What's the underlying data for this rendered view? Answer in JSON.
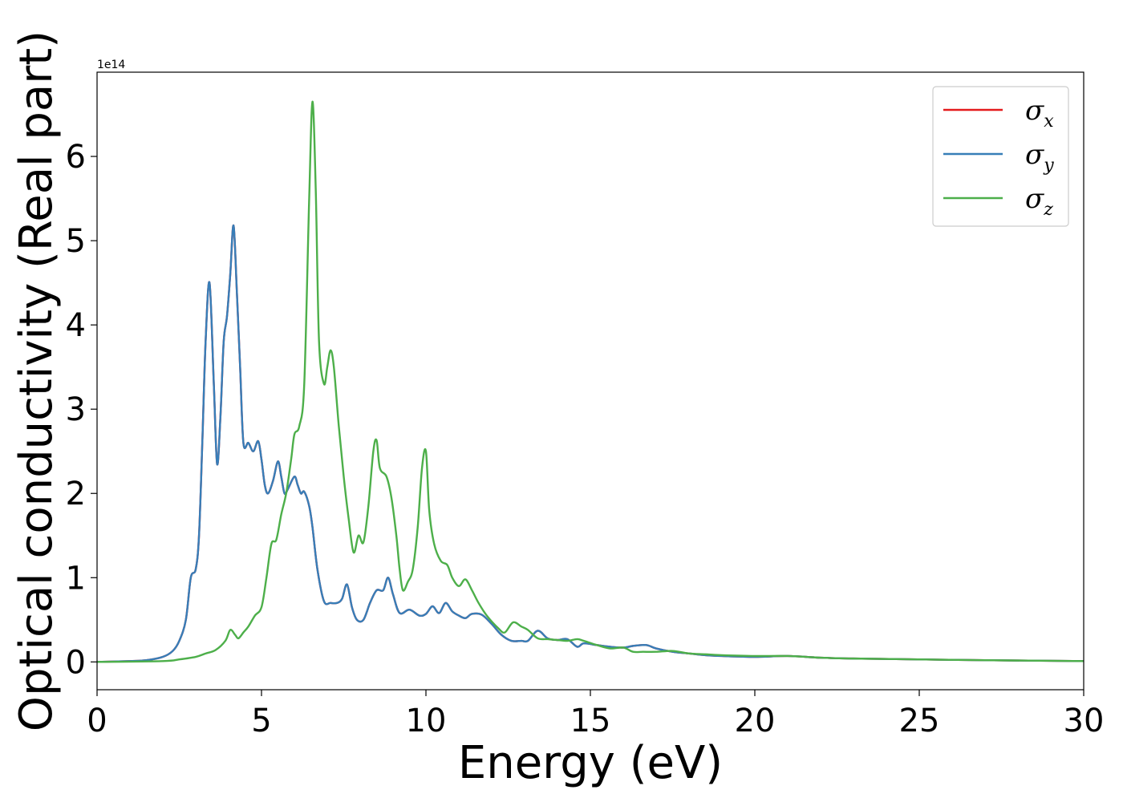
{
  "chart_data": {
    "type": "line",
    "title": "",
    "xlabel": "Energy (eV)",
    "ylabel": "Optical conductivity (Real part)",
    "y_offset_label": "1e14",
    "xlim": [
      0,
      30
    ],
    "ylim": [
      -0.33,
      7.0
    ],
    "xticks": [
      "0",
      "5",
      "10",
      "15",
      "20",
      "25",
      "30"
    ],
    "yticks": [
      "0",
      "1",
      "2",
      "3",
      "4",
      "5",
      "6"
    ],
    "grid": false,
    "legend_position": "upper right",
    "series": [
      {
        "name": "σ_x",
        "symbol": "σ",
        "sub": "x",
        "color": "#e41a1c",
        "x": [
          0,
          1,
          1.5,
          2,
          2.3,
          2.5,
          2.7,
          2.85,
          3.0,
          3.1,
          3.2,
          3.3,
          3.42,
          3.55,
          3.65,
          3.75,
          3.85,
          3.95,
          4.05,
          4.15,
          4.25,
          4.35,
          4.45,
          4.6,
          4.75,
          4.9,
          5.0,
          5.1,
          5.2,
          5.35,
          5.5,
          5.6,
          5.7,
          5.8,
          6.0,
          6.1,
          6.2,
          6.3,
          6.45,
          6.55,
          6.7,
          6.9,
          7.1,
          7.3,
          7.45,
          7.6,
          7.75,
          7.9,
          8.1,
          8.3,
          8.5,
          8.7,
          8.85,
          9.0,
          9.2,
          9.5,
          9.8,
          10.0,
          10.2,
          10.4,
          10.6,
          10.8,
          11.0,
          11.2,
          11.4,
          11.7,
          12.0,
          12.3,
          12.6,
          12.9,
          13.1,
          13.4,
          13.7,
          14.0,
          14.3,
          14.6,
          14.8,
          15.2,
          15.6,
          16.0,
          16.3,
          16.7,
          17.0,
          17.5,
          18.0,
          18.5,
          19.0,
          20.0,
          21.0,
          22.0,
          23.0,
          25.0,
          27.0,
          30.0
        ],
        "y": [
          0,
          0.01,
          0.02,
          0.06,
          0.13,
          0.25,
          0.5,
          1.0,
          1.1,
          1.5,
          2.6,
          3.8,
          4.5,
          3.3,
          2.35,
          2.9,
          3.8,
          4.1,
          4.6,
          5.18,
          4.4,
          3.5,
          2.6,
          2.6,
          2.5,
          2.62,
          2.4,
          2.1,
          2.0,
          2.15,
          2.38,
          2.2,
          2.0,
          2.05,
          2.2,
          2.1,
          2.0,
          2.02,
          1.85,
          1.6,
          1.1,
          0.72,
          0.7,
          0.7,
          0.75,
          0.92,
          0.65,
          0.5,
          0.5,
          0.7,
          0.85,
          0.85,
          1.0,
          0.8,
          0.58,
          0.62,
          0.55,
          0.57,
          0.66,
          0.58,
          0.7,
          0.6,
          0.55,
          0.52,
          0.57,
          0.56,
          0.45,
          0.32,
          0.25,
          0.25,
          0.25,
          0.37,
          0.28,
          0.26,
          0.27,
          0.18,
          0.22,
          0.2,
          0.18,
          0.17,
          0.19,
          0.2,
          0.16,
          0.12,
          0.1,
          0.08,
          0.07,
          0.06,
          0.07,
          0.05,
          0.04,
          0.03,
          0.02,
          0.01
        ]
      },
      {
        "name": "σ_y",
        "symbol": "σ",
        "sub": "y",
        "color": "#377eb8",
        "x": [
          0,
          1,
          1.5,
          2,
          2.3,
          2.5,
          2.7,
          2.85,
          3.0,
          3.1,
          3.2,
          3.3,
          3.42,
          3.55,
          3.65,
          3.75,
          3.85,
          3.95,
          4.05,
          4.15,
          4.25,
          4.35,
          4.45,
          4.6,
          4.75,
          4.9,
          5.0,
          5.1,
          5.2,
          5.35,
          5.5,
          5.6,
          5.7,
          5.8,
          6.0,
          6.1,
          6.2,
          6.3,
          6.45,
          6.55,
          6.7,
          6.9,
          7.1,
          7.3,
          7.45,
          7.6,
          7.75,
          7.9,
          8.1,
          8.3,
          8.5,
          8.7,
          8.85,
          9.0,
          9.2,
          9.5,
          9.8,
          10.0,
          10.2,
          10.4,
          10.6,
          10.8,
          11.0,
          11.2,
          11.4,
          11.7,
          12.0,
          12.3,
          12.6,
          12.9,
          13.1,
          13.4,
          13.7,
          14.0,
          14.3,
          14.6,
          14.8,
          15.2,
          15.6,
          16.0,
          16.3,
          16.7,
          17.0,
          17.5,
          18.0,
          18.5,
          19.0,
          20.0,
          21.0,
          22.0,
          23.0,
          25.0,
          27.0,
          30.0
        ],
        "y": [
          0,
          0.01,
          0.02,
          0.06,
          0.13,
          0.25,
          0.5,
          1.0,
          1.1,
          1.5,
          2.6,
          3.8,
          4.5,
          3.3,
          2.35,
          2.9,
          3.8,
          4.1,
          4.6,
          5.18,
          4.4,
          3.5,
          2.6,
          2.6,
          2.5,
          2.62,
          2.4,
          2.1,
          2.0,
          2.15,
          2.38,
          2.2,
          2.0,
          2.05,
          2.2,
          2.1,
          2.0,
          2.02,
          1.85,
          1.6,
          1.1,
          0.72,
          0.7,
          0.7,
          0.75,
          0.92,
          0.65,
          0.5,
          0.5,
          0.7,
          0.85,
          0.85,
          1.0,
          0.8,
          0.58,
          0.62,
          0.55,
          0.57,
          0.66,
          0.58,
          0.7,
          0.6,
          0.55,
          0.52,
          0.57,
          0.56,
          0.45,
          0.32,
          0.25,
          0.25,
          0.25,
          0.37,
          0.28,
          0.26,
          0.27,
          0.18,
          0.22,
          0.2,
          0.18,
          0.17,
          0.19,
          0.2,
          0.16,
          0.12,
          0.1,
          0.08,
          0.07,
          0.06,
          0.07,
          0.05,
          0.04,
          0.03,
          0.02,
          0.01
        ]
      },
      {
        "name": "σ_z",
        "symbol": "σ",
        "sub": "z",
        "color": "#4daf4a",
        "x": [
          0,
          2,
          2.5,
          3.0,
          3.3,
          3.6,
          3.9,
          4.05,
          4.2,
          4.3,
          4.45,
          4.6,
          4.8,
          5.0,
          5.15,
          5.3,
          5.45,
          5.6,
          5.75,
          5.9,
          6.0,
          6.15,
          6.3,
          6.45,
          6.55,
          6.65,
          6.75,
          6.9,
          7.0,
          7.1,
          7.2,
          7.35,
          7.5,
          7.65,
          7.8,
          7.95,
          8.1,
          8.25,
          8.4,
          8.5,
          8.6,
          8.8,
          8.95,
          9.1,
          9.2,
          9.3,
          9.45,
          9.6,
          9.75,
          9.88,
          10.0,
          10.1,
          10.25,
          10.45,
          10.65,
          10.8,
          11.0,
          11.2,
          11.4,
          11.6,
          11.85,
          12.2,
          12.4,
          12.65,
          12.9,
          13.1,
          13.4,
          13.7,
          14.0,
          14.3,
          14.6,
          14.8,
          15.2,
          15.6,
          16.0,
          16.3,
          16.6,
          17.0,
          17.5,
          18.0,
          18.5,
          19.0,
          20.0,
          21.0,
          22.0,
          23.0,
          25.0,
          27.0,
          30.0
        ],
        "y": [
          0,
          0.01,
          0.03,
          0.06,
          0.1,
          0.14,
          0.25,
          0.38,
          0.32,
          0.28,
          0.35,
          0.42,
          0.55,
          0.65,
          1.0,
          1.4,
          1.45,
          1.75,
          2.0,
          2.4,
          2.7,
          2.8,
          3.3,
          5.5,
          6.65,
          5.6,
          3.8,
          3.3,
          3.5,
          3.7,
          3.5,
          2.8,
          2.2,
          1.7,
          1.3,
          1.5,
          1.42,
          1.85,
          2.5,
          2.63,
          2.3,
          2.2,
          1.95,
          1.5,
          1.1,
          0.85,
          0.95,
          1.1,
          1.6,
          2.3,
          2.5,
          1.8,
          1.4,
          1.2,
          1.15,
          1.0,
          0.9,
          0.98,
          0.85,
          0.7,
          0.55,
          0.4,
          0.35,
          0.47,
          0.42,
          0.38,
          0.28,
          0.27,
          0.26,
          0.25,
          0.27,
          0.25,
          0.2,
          0.16,
          0.17,
          0.12,
          0.12,
          0.12,
          0.13,
          0.1,
          0.09,
          0.08,
          0.07,
          0.07,
          0.05,
          0.04,
          0.03,
          0.02,
          0.01
        ]
      }
    ]
  }
}
